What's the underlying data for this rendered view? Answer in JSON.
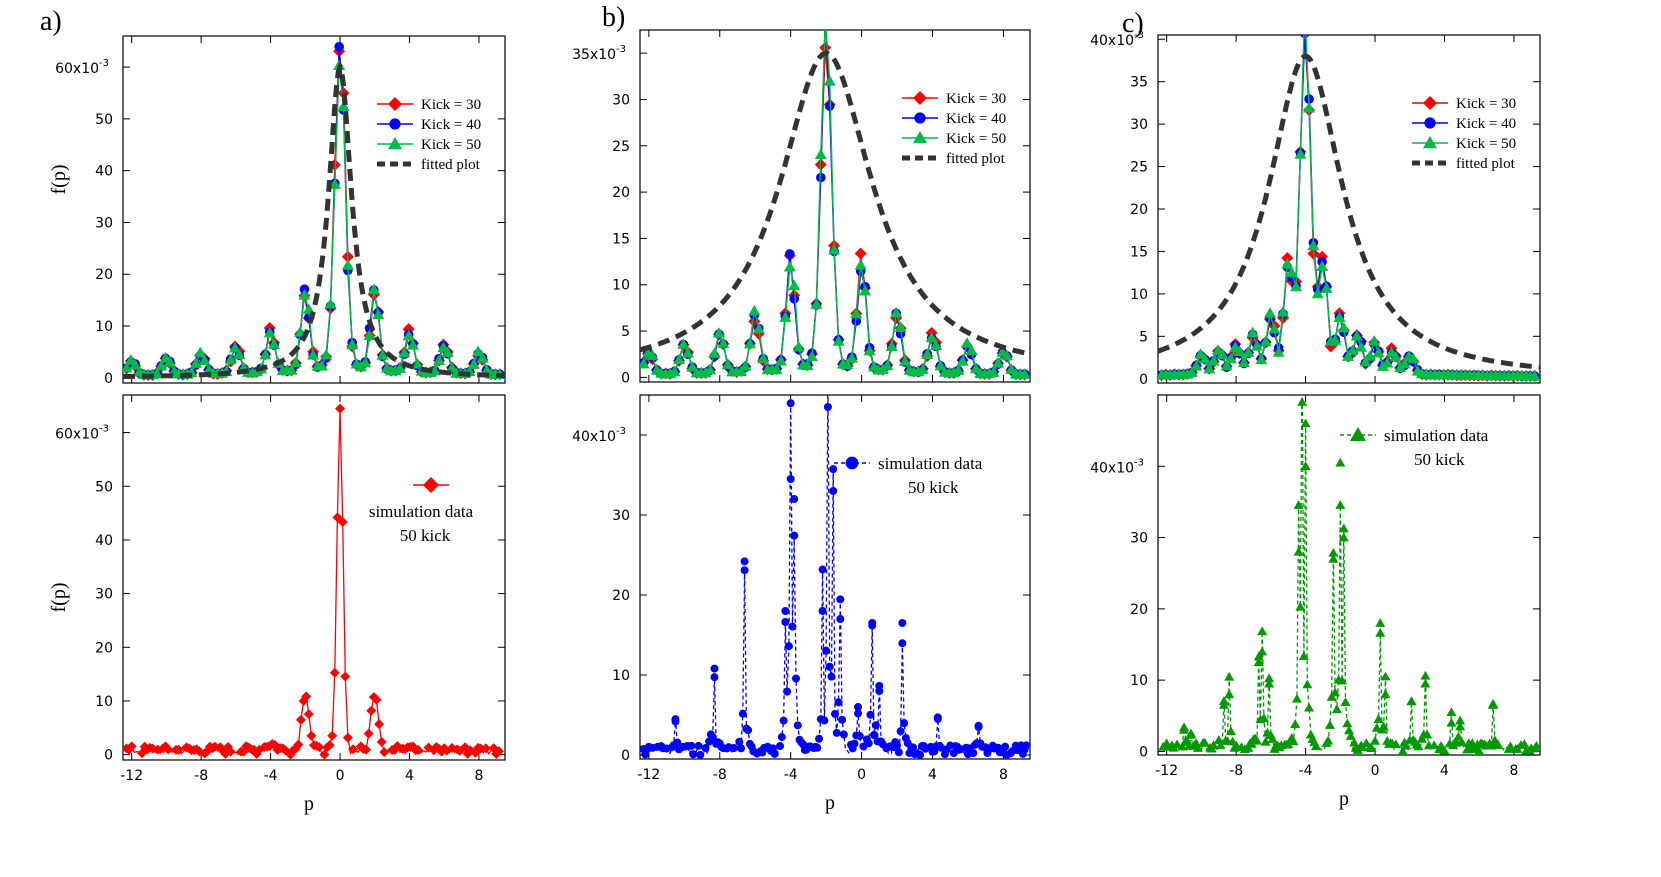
{
  "chart_data": [
    {
      "id": "a-top",
      "type": "line",
      "panel_label": "a)",
      "ylabel": "f(p)",
      "xlabel": "",
      "xlim": [
        -12.5,
        9.5
      ],
      "ylim": [
        -1,
        66
      ],
      "yticks": [
        "0",
        "10",
        "20",
        "30",
        "40",
        "50"
      ],
      "yscale_label": "60x10",
      "yscale_exp": "-3",
      "yscale_value": 60,
      "peak": 0,
      "amp": 62,
      "gamma": 1.0,
      "spacing": 2,
      "fit_peak": 0,
      "fit_amp": 60,
      "fit_gamma": 0.8,
      "legend": [
        {
          "label": "Kick = 30",
          "color": "#ff0000",
          "marker": "diamond"
        },
        {
          "label": "Kick = 40",
          "color": "#0000ff",
          "marker": "circle"
        },
        {
          "label": "Kick = 50",
          "color": "#00bb44",
          "marker": "triangle"
        },
        {
          "label": "fitted plot",
          "color": "#333333",
          "marker": "dash"
        }
      ]
    },
    {
      "id": "a-bottom",
      "type": "line",
      "panel_label": "",
      "ylabel": "f(p)",
      "xlabel": "p",
      "xlim": [
        -12.5,
        9.5
      ],
      "ylim": [
        -1,
        67
      ],
      "xticks": [
        "-12",
        "-8",
        "-4",
        "0",
        "4",
        "8"
      ],
      "yticks": [
        "0",
        "10",
        "20",
        "30",
        "40",
        "50"
      ],
      "yscale_label": "60x10",
      "yscale_exp": "-3",
      "yscale_value": 60,
      "peak": 0,
      "amp": 63,
      "spacing": 2,
      "legend": [
        {
          "label": "simulation data",
          "color": "#ff0000",
          "marker": "diamond"
        },
        {
          "label": "50 kick",
          "color": "#000000",
          "marker": "none"
        }
      ]
    },
    {
      "id": "b-top",
      "type": "line",
      "panel_label": "b)",
      "ylabel": "",
      "xlabel": "",
      "xlim": [
        -12.5,
        9.5
      ],
      "ylim": [
        -0.5,
        37.5
      ],
      "yticks": [
        "0",
        "5",
        "10",
        "15",
        "20",
        "25",
        "30"
      ],
      "yscale_label": "35x10",
      "yscale_exp": "-3",
      "yscale_value": 35,
      "peak": -2,
      "amp": 36,
      "spacing": 2,
      "fit_peak": -2,
      "fit_amp": 35,
      "fit_gamma": 3.2,
      "legend": [
        {
          "label": "Kick = 30",
          "color": "#ff0000",
          "marker": "diamond"
        },
        {
          "label": "Kick = 40",
          "color": "#0000ff",
          "marker": "circle"
        },
        {
          "label": "Kick = 50",
          "color": "#00bb44",
          "marker": "triangle"
        },
        {
          "label": "fitted plot",
          "color": "#333333",
          "marker": "dash"
        }
      ]
    },
    {
      "id": "b-bottom",
      "type": "scatter",
      "panel_label": "",
      "ylabel": "",
      "xlabel": "p",
      "xlim": [
        -12.5,
        9.5
      ],
      "ylim": [
        -0.5,
        45
      ],
      "xticks": [
        "-12",
        "-8",
        "-4",
        "0",
        "4",
        "8"
      ],
      "yticks": [
        "0",
        "10",
        "20",
        "30"
      ],
      "yscale_label": "40x10",
      "yscale_exp": "-3",
      "yscale_value": 40,
      "spikes": [
        [
          -10.5,
          4.2
        ],
        [
          -8.3,
          10.8
        ],
        [
          -6.6,
          24.2
        ],
        [
          -4.3,
          18
        ],
        [
          -4.0,
          34.5
        ],
        [
          -3.8,
          32
        ],
        [
          -2.2,
          18
        ],
        [
          -1.9,
          43.5
        ],
        [
          -1.6,
          33
        ],
        [
          -1.2,
          17
        ],
        [
          -0.2,
          6
        ],
        [
          0.6,
          16.5
        ],
        [
          1.0,
          8
        ],
        [
          2.3,
          16.5
        ],
        [
          4.3,
          4.7
        ],
        [
          6.6,
          3.5
        ]
      ],
      "legend": [
        {
          "label": "simulation data",
          "color": "#0000ff",
          "marker": "circle"
        },
        {
          "label": "50 kick",
          "color": "#000000",
          "marker": "none"
        }
      ]
    },
    {
      "id": "c-top",
      "type": "line",
      "panel_label": "c)",
      "ylabel": "",
      "xlabel": "",
      "xlim": [
        -12.5,
        9.5
      ],
      "ylim": [
        -0.5,
        40.5
      ],
      "yticks": [
        "0",
        "5",
        "10",
        "15",
        "20",
        "25",
        "30",
        "35"
      ],
      "yscale_label": "40x10",
      "yscale_exp": "-3",
      "yscale_value": 40,
      "peak": -4,
      "amp": 39,
      "spacing": 1,
      "fit_peak": -4,
      "fit_amp": 38,
      "fit_gamma": 2.6,
      "legend": [
        {
          "label": "Kick = 30",
          "color": "#ff0000",
          "marker": "diamond"
        },
        {
          "label": "Kick = 40",
          "color": "#0000ff",
          "marker": "circle"
        },
        {
          "label": "Kick = 50",
          "color": "#00bb44",
          "marker": "triangle"
        },
        {
          "label": "fitted plot",
          "color": "#333333",
          "marker": "dash"
        }
      ]
    },
    {
      "id": "c-bottom",
      "type": "scatter",
      "panel_label": "",
      "ylabel": "",
      "xlabel": "p",
      "xlim": [
        -12.5,
        9.5
      ],
      "ylim": [
        -0.5,
        50
      ],
      "xticks": [
        "-12",
        "-8",
        "-4",
        "0",
        "4",
        "8"
      ],
      "yticks": [
        "0",
        "10",
        "20",
        "30"
      ],
      "yscale_label": "40x10",
      "yscale_exp": "-3",
      "yscale_value": 40,
      "spikes": [
        [
          -11,
          3
        ],
        [
          -10.6,
          2.5
        ],
        [
          -8.7,
          6.5
        ],
        [
          -8.4,
          8
        ],
        [
          -6.7,
          12.5
        ],
        [
          -6.5,
          14
        ],
        [
          -6.1,
          9.5
        ],
        [
          -4.4,
          28
        ],
        [
          -4.2,
          49
        ],
        [
          -4.0,
          40
        ],
        [
          -2.4,
          27
        ],
        [
          -2.0,
          40.5
        ],
        [
          -1.8,
          30
        ],
        [
          0.3,
          18
        ],
        [
          0.6,
          8
        ],
        [
          2.1,
          7
        ],
        [
          2.9,
          9.5
        ],
        [
          4.4,
          4
        ],
        [
          4.9,
          3.5
        ],
        [
          6.8,
          6.5
        ]
      ],
      "legend": [
        {
          "label": "simulation data",
          "color": "#009900",
          "marker": "triangle"
        },
        {
          "label": "50 kick",
          "color": "#000000",
          "marker": "none"
        }
      ]
    }
  ]
}
